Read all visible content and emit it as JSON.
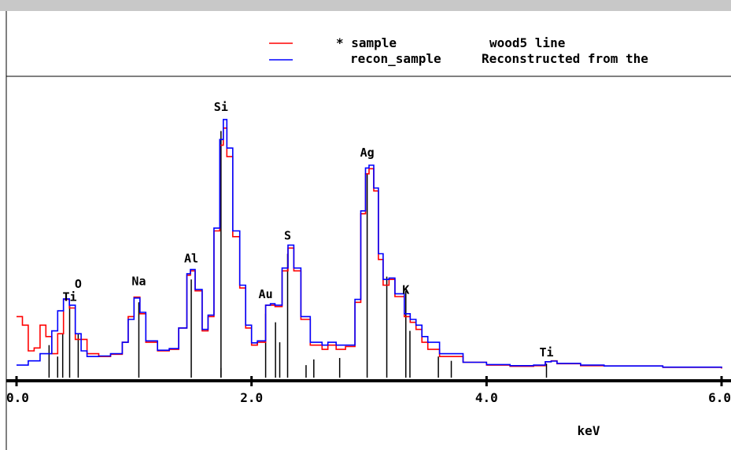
{
  "window": {
    "titlebar_text": ""
  },
  "chart_data": {
    "type": "line",
    "xlabel": "keV",
    "ylabel": "",
    "xlim": [
      0.0,
      6.0
    ],
    "ylim": [
      0,
      1000
    ],
    "grid": false,
    "legend_position": "top",
    "x_ticks": [
      {
        "value": 0.0,
        "label": "0.0"
      },
      {
        "value": 2.0,
        "label": "2.0"
      },
      {
        "value": 4.0,
        "label": "4.0"
      },
      {
        "value": 6.0,
        "label": "6.0"
      }
    ],
    "legend": [
      {
        "line_color": "#ff0000",
        "name": "* sample",
        "description": "wood5 line"
      },
      {
        "line_color": "#0000ff",
        "name": "recon_sample",
        "description": "Reconstructed from the"
      }
    ],
    "series": [
      {
        "name": "* sample",
        "color": "#ff0000",
        "points": [
          [
            0.0,
            200
          ],
          [
            0.05,
            170
          ],
          [
            0.1,
            80
          ],
          [
            0.15,
            90
          ],
          [
            0.2,
            170
          ],
          [
            0.25,
            130
          ],
          [
            0.3,
            70
          ],
          [
            0.35,
            140
          ],
          [
            0.4,
            260
          ],
          [
            0.45,
            230
          ],
          [
            0.5,
            120
          ],
          [
            0.6,
            70
          ],
          [
            0.7,
            60
          ],
          [
            0.8,
            68
          ],
          [
            0.9,
            110
          ],
          [
            0.95,
            200
          ],
          [
            1.0,
            268
          ],
          [
            1.05,
            210
          ],
          [
            1.1,
            110
          ],
          [
            1.2,
            80
          ],
          [
            1.3,
            85
          ],
          [
            1.38,
            160
          ],
          [
            1.45,
            345
          ],
          [
            1.48,
            360
          ],
          [
            1.52,
            290
          ],
          [
            1.58,
            150
          ],
          [
            1.63,
            200
          ],
          [
            1.68,
            500
          ],
          [
            1.73,
            800
          ],
          [
            1.76,
            860
          ],
          [
            1.79,
            760
          ],
          [
            1.84,
            480
          ],
          [
            1.9,
            300
          ],
          [
            1.95,
            160
          ],
          [
            2.0,
            100
          ],
          [
            2.05,
            110
          ],
          [
            2.12,
            240
          ],
          [
            2.16,
            240
          ],
          [
            2.2,
            235
          ],
          [
            2.26,
            360
          ],
          [
            2.31,
            440
          ],
          [
            2.36,
            360
          ],
          [
            2.42,
            190
          ],
          [
            2.5,
            100
          ],
          [
            2.6,
            85
          ],
          [
            2.65,
            100
          ],
          [
            2.72,
            85
          ],
          [
            2.8,
            95
          ],
          [
            2.88,
            250
          ],
          [
            2.93,
            560
          ],
          [
            2.97,
            700
          ],
          [
            3.0,
            718
          ],
          [
            3.04,
            640
          ],
          [
            3.08,
            400
          ],
          [
            3.12,
            310
          ],
          [
            3.17,
            330
          ],
          [
            3.22,
            270
          ],
          [
            3.3,
            200
          ],
          [
            3.35,
            180
          ],
          [
            3.4,
            155
          ],
          [
            3.45,
            110
          ],
          [
            3.5,
            85
          ],
          [
            3.6,
            60
          ],
          [
            3.8,
            40
          ],
          [
            4.0,
            30
          ],
          [
            4.2,
            26
          ],
          [
            4.4,
            28
          ],
          [
            4.5,
            42
          ],
          [
            4.55,
            45
          ],
          [
            4.6,
            35
          ],
          [
            4.8,
            28
          ],
          [
            5.0,
            27
          ],
          [
            5.5,
            22
          ],
          [
            6.0,
            18
          ]
        ]
      },
      {
        "name": "recon_sample",
        "color": "#0000ff",
        "points": [
          [
            0.0,
            30
          ],
          [
            0.1,
            45
          ],
          [
            0.2,
            70
          ],
          [
            0.3,
            150
          ],
          [
            0.35,
            220
          ],
          [
            0.4,
            262
          ],
          [
            0.45,
            240
          ],
          [
            0.5,
            140
          ],
          [
            0.55,
            80
          ],
          [
            0.6,
            60
          ],
          [
            0.7,
            62
          ],
          [
            0.8,
            70
          ],
          [
            0.9,
            110
          ],
          [
            0.95,
            190
          ],
          [
            1.0,
            265
          ],
          [
            1.05,
            215
          ],
          [
            1.1,
            115
          ],
          [
            1.2,
            82
          ],
          [
            1.3,
            88
          ],
          [
            1.38,
            160
          ],
          [
            1.45,
            350
          ],
          [
            1.48,
            365
          ],
          [
            1.52,
            295
          ],
          [
            1.58,
            155
          ],
          [
            1.63,
            205
          ],
          [
            1.68,
            510
          ],
          [
            1.73,
            820
          ],
          [
            1.76,
            890
          ],
          [
            1.79,
            790
          ],
          [
            1.84,
            500
          ],
          [
            1.9,
            310
          ],
          [
            1.95,
            170
          ],
          [
            2.0,
            108
          ],
          [
            2.05,
            115
          ],
          [
            2.12,
            240
          ],
          [
            2.16,
            245
          ],
          [
            2.2,
            240
          ],
          [
            2.26,
            370
          ],
          [
            2.31,
            450
          ],
          [
            2.36,
            370
          ],
          [
            2.42,
            200
          ],
          [
            2.5,
            110
          ],
          [
            2.6,
            100
          ],
          [
            2.65,
            110
          ],
          [
            2.72,
            100
          ],
          [
            2.8,
            100
          ],
          [
            2.88,
            260
          ],
          [
            2.93,
            570
          ],
          [
            2.97,
            720
          ],
          [
            3.0,
            730
          ],
          [
            3.04,
            650
          ],
          [
            3.08,
            420
          ],
          [
            3.12,
            330
          ],
          [
            3.17,
            335
          ],
          [
            3.22,
            280
          ],
          [
            3.3,
            210
          ],
          [
            3.35,
            190
          ],
          [
            3.4,
            170
          ],
          [
            3.45,
            130
          ],
          [
            3.5,
            110
          ],
          [
            3.6,
            70
          ],
          [
            3.8,
            40
          ],
          [
            4.0,
            32
          ],
          [
            4.2,
            28
          ],
          [
            4.4,
            30
          ],
          [
            4.5,
            42
          ],
          [
            4.55,
            44
          ],
          [
            4.6,
            36
          ],
          [
            4.8,
            30
          ],
          [
            5.0,
            27
          ],
          [
            5.5,
            23
          ],
          [
            6.0,
            20
          ]
        ]
      }
    ],
    "line_markers": [
      {
        "energy": 0.277,
        "height": 100
      },
      {
        "energy": 0.35,
        "height": 60
      },
      {
        "energy": 0.393,
        "height": 140
      },
      {
        "energy": 0.452,
        "height": 240
      },
      {
        "energy": 0.525,
        "height": 140
      },
      {
        "energy": 1.041,
        "height": 250
      },
      {
        "energy": 1.487,
        "height": 330
      },
      {
        "energy": 1.74,
        "height": 20
      },
      {
        "energy": 1.74,
        "height": 850
      },
      {
        "energy": 2.12,
        "height": 210
      },
      {
        "energy": 2.204,
        "height": 180
      },
      {
        "energy": 2.24,
        "height": 110
      },
      {
        "energy": 2.307,
        "height": 420
      },
      {
        "energy": 2.464,
        "height": 30
      },
      {
        "energy": 2.53,
        "height": 50
      },
      {
        "energy": 2.75,
        "height": 55
      },
      {
        "energy": 2.984,
        "height": 700
      },
      {
        "energy": 3.151,
        "height": 340
      },
      {
        "energy": 3.313,
        "height": 290
      },
      {
        "energy": 3.348,
        "height": 150
      },
      {
        "energy": 3.59,
        "height": 60
      },
      {
        "energy": 3.7,
        "height": 45
      },
      {
        "energy": 4.51,
        "height": 35
      }
    ],
    "element_labels": [
      {
        "text": "O",
        "energy": 0.525,
        "level": 300
      },
      {
        "text": "Ti",
        "energy": 0.452,
        "level": 255
      },
      {
        "text": "Na",
        "energy": 1.041,
        "level": 310
      },
      {
        "text": "Al",
        "energy": 1.487,
        "level": 390
      },
      {
        "text": "Si",
        "energy": 1.74,
        "level": 920
      },
      {
        "text": "Au",
        "energy": 2.12,
        "level": 265
      },
      {
        "text": "S",
        "energy": 2.307,
        "level": 470
      },
      {
        "text": "Ag",
        "energy": 2.984,
        "level": 760
      },
      {
        "text": "K",
        "energy": 3.313,
        "level": 280
      },
      {
        "text": "Ti",
        "energy": 4.51,
        "level": 60
      }
    ]
  }
}
